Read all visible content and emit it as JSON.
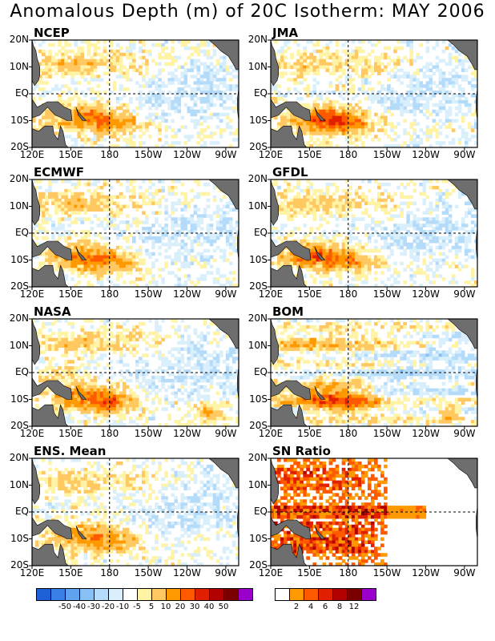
{
  "title": "Anomalous Depth (m) of 20C Isotherm: MAY 2006",
  "lat_labels": [
    "20N",
    "10N",
    "EQ",
    "10S",
    "20S"
  ],
  "lon_labels": [
    "120E",
    "150E",
    "180",
    "150W",
    "120W",
    "90W"
  ],
  "colors": {
    "land": "#6e6e6e",
    "anomaly": [
      "#1f5fd6",
      "#3b80e6",
      "#5ea2f0",
      "#86c0f5",
      "#b4dcfa",
      "#d9f0fc",
      "#ffffff",
      "#fff3a6",
      "#ffc861",
      "#ff9900",
      "#ff5a00",
      "#e02000",
      "#b30000",
      "#7a0000",
      "#9900cc"
    ],
    "snr": [
      "#ffffff",
      "#ff9900",
      "#ff5a00",
      "#e02000",
      "#b30000",
      "#7a0000",
      "#9900cc"
    ]
  },
  "chart_data": [
    {
      "type": "heatmap",
      "title": "NCEP",
      "variable": "20C isotherm depth anomaly (m)",
      "lat_range": [
        "20S",
        "20N"
      ],
      "lon_range": [
        "120E",
        "80W"
      ],
      "features": [
        "positive anomaly 10-30 m in western Pacific along 10N",
        "strong positive anomaly 20-50 m 5S-15S from 140E to 170W",
        "negative anomaly -5 to -20 m in eastern Pacific"
      ]
    },
    {
      "type": "heatmap",
      "title": "JMA",
      "variable": "20C isotherm depth anomaly (m)",
      "lat_range": [
        "20S",
        "20N"
      ],
      "lon_range": [
        "120E",
        "80W"
      ],
      "features": [
        "positive anomaly along 10N west of 160W",
        "strong positive anomaly 20-40 m 5S-15S from 140E to 180",
        "negative anomaly in central and eastern Pacific"
      ]
    },
    {
      "type": "heatmap",
      "title": "ECMWF",
      "variable": "20C isotherm depth anomaly (m)",
      "lat_range": [
        "20S",
        "20N"
      ],
      "lon_range": [
        "120E",
        "80W"
      ],
      "features": [
        "positive anomaly 10-20 m along 10N-15N west of 150W",
        "positive anomaly 20-30 m 5S-15S west of 180",
        "negative anomaly -5 to -10 m east of 150W"
      ]
    },
    {
      "type": "heatmap",
      "title": "GFDL",
      "variable": "20C isotherm depth anomaly (m)",
      "lat_range": [
        "20S",
        "20N"
      ],
      "lon_range": [
        "120E",
        "80W"
      ],
      "features": [
        "positive anomaly 10-20 m near 10N-15N",
        "strong positive anomaly 20-40 m 5S-15S from 140E to 170W",
        "negative anomaly in eastern Pacific"
      ]
    },
    {
      "type": "heatmap",
      "title": "NASA",
      "variable": "20C isotherm depth anomaly (m)",
      "lat_range": [
        "20S",
        "20N"
      ],
      "lon_range": [
        "120E",
        "80W"
      ],
      "features": [
        "positive anomaly 10-20 m across western and central north tropical Pacific",
        "positive anomaly 20-40 m 10S-15S near 180",
        "positive patches near 15S 100W"
      ]
    },
    {
      "type": "heatmap",
      "title": "BOM",
      "variable": "20C isotherm depth anomaly (m)",
      "lat_range": [
        "20S",
        "20N"
      ],
      "lon_range": [
        "120E",
        "80W"
      ],
      "features": [
        "zonally banded positive anomalies 5-20 m",
        "positive anomaly 20-40 m 5S-15S from 150E to 170W",
        "positive patch near 15S 100W"
      ]
    },
    {
      "type": "heatmap",
      "title": "ENS. Mean",
      "variable": "20C isotherm depth anomaly (m)",
      "lat_range": [
        "20S",
        "20N"
      ],
      "lon_range": [
        "120E",
        "80W"
      ],
      "features": [
        "positive anomaly 10-20 m along 10N west of 150W",
        "positive anomaly 20-40 m 5S-15S from 150E to 170W",
        "weak negative anomaly -5 to -10 m in east"
      ]
    },
    {
      "type": "heatmap",
      "title": "SN Ratio",
      "variable": "signal-to-noise ratio",
      "lat_range": [
        "20S",
        "20N"
      ],
      "lon_range": [
        "120E",
        "80W"
      ],
      "features": [
        "high ratio 6-12 scattered in western Pacific",
        "high ratio band along equator west of 150W",
        "low ratio in far eastern Pacific"
      ]
    }
  ],
  "colorbar_anomaly": {
    "labels": [
      "-50",
      "-40",
      "-30",
      "-20",
      "-10",
      "-5",
      "5",
      "10",
      "20",
      "30",
      "40",
      "50"
    ]
  },
  "colorbar_snr": {
    "labels": [
      "2",
      "4",
      "6",
      "8",
      "12"
    ]
  }
}
